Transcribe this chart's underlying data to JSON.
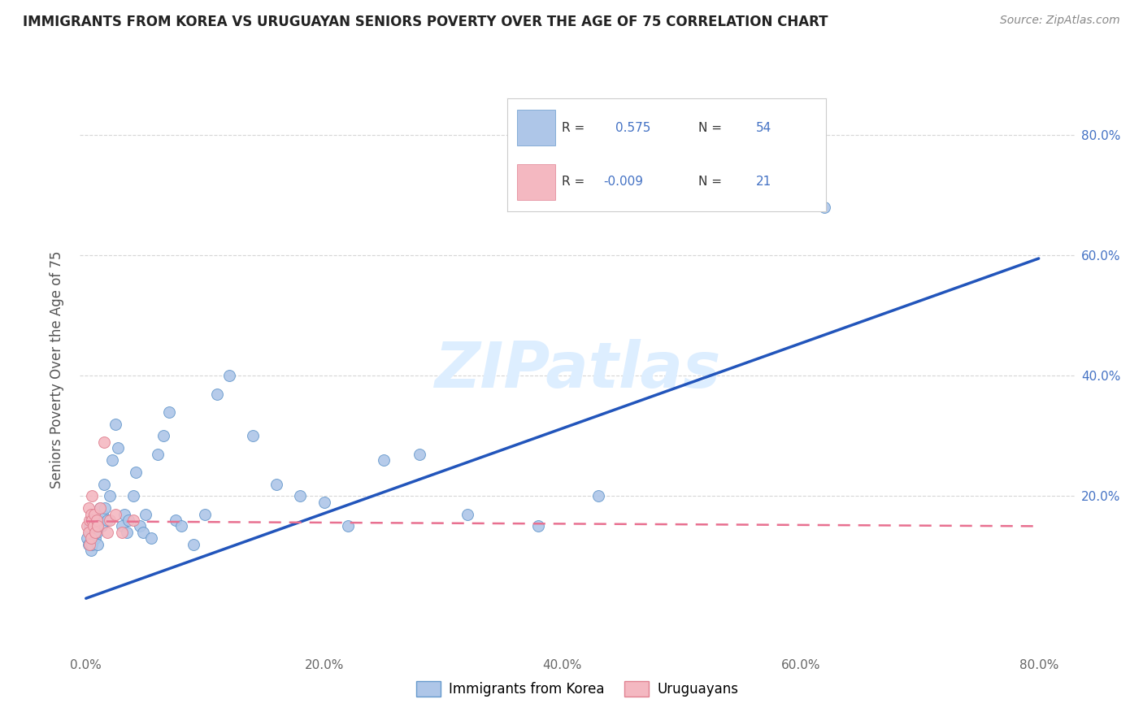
{
  "title": "IMMIGRANTS FROM KOREA VS URUGUAYAN SENIORS POVERTY OVER THE AGE OF 75 CORRELATION CHART",
  "source": "Source: ZipAtlas.com",
  "ylabel": "Seniors Poverty Over the Age of 75",
  "x_tick_labels": [
    "0.0%",
    "20.0%",
    "40.0%",
    "60.0%",
    "80.0%"
  ],
  "x_tick_values": [
    0.0,
    0.2,
    0.4,
    0.6,
    0.8
  ],
  "y_tick_labels": [
    "20.0%",
    "40.0%",
    "60.0%",
    "80.0%"
  ],
  "y_tick_values": [
    0.2,
    0.4,
    0.6,
    0.8
  ],
  "xlim": [
    -0.005,
    0.83
  ],
  "ylim": [
    -0.06,
    0.88
  ],
  "korea_scatter_x": [
    0.001,
    0.002,
    0.003,
    0.003,
    0.004,
    0.004,
    0.005,
    0.005,
    0.006,
    0.007,
    0.008,
    0.009,
    0.01,
    0.011,
    0.012,
    0.013,
    0.014,
    0.015,
    0.016,
    0.018,
    0.02,
    0.022,
    0.025,
    0.027,
    0.03,
    0.032,
    0.034,
    0.036,
    0.04,
    0.042,
    0.045,
    0.048,
    0.05,
    0.055,
    0.06,
    0.065,
    0.07,
    0.075,
    0.08,
    0.09,
    0.1,
    0.11,
    0.12,
    0.14,
    0.16,
    0.18,
    0.2,
    0.22,
    0.25,
    0.28,
    0.32,
    0.38,
    0.43,
    0.62
  ],
  "korea_scatter_y": [
    0.13,
    0.12,
    0.15,
    0.14,
    0.11,
    0.16,
    0.13,
    0.12,
    0.14,
    0.15,
    0.13,
    0.14,
    0.12,
    0.16,
    0.18,
    0.15,
    0.17,
    0.22,
    0.18,
    0.16,
    0.2,
    0.26,
    0.32,
    0.28,
    0.15,
    0.17,
    0.14,
    0.16,
    0.2,
    0.24,
    0.15,
    0.14,
    0.17,
    0.13,
    0.27,
    0.3,
    0.34,
    0.16,
    0.15,
    0.12,
    0.17,
    0.37,
    0.4,
    0.3,
    0.22,
    0.2,
    0.19,
    0.15,
    0.26,
    0.27,
    0.17,
    0.15,
    0.2,
    0.68
  ],
  "uruguay_scatter_x": [
    0.001,
    0.002,
    0.002,
    0.003,
    0.003,
    0.004,
    0.004,
    0.005,
    0.005,
    0.006,
    0.007,
    0.008,
    0.009,
    0.01,
    0.012,
    0.015,
    0.018,
    0.02,
    0.025,
    0.03,
    0.04
  ],
  "uruguay_scatter_y": [
    0.15,
    0.18,
    0.14,
    0.16,
    0.12,
    0.17,
    0.13,
    0.2,
    0.16,
    0.15,
    0.17,
    0.14,
    0.16,
    0.15,
    0.18,
    0.29,
    0.14,
    0.16,
    0.17,
    0.14,
    0.16
  ],
  "korea_line_x": [
    0.0,
    0.8
  ],
  "korea_line_y": [
    0.03,
    0.595
  ],
  "uruguay_line_x": [
    0.0,
    0.8
  ],
  "uruguay_line_y": [
    0.158,
    0.15
  ],
  "scatter_size": 100,
  "korea_color": "#aec6e8",
  "korea_edge_color": "#6699cc",
  "uruguay_color": "#f4b8c1",
  "uruguay_edge_color": "#e08090",
  "korea_line_color": "#2255bb",
  "uruguay_line_color": "#e87090",
  "bg_color": "#ffffff",
  "grid_color": "#cccccc",
  "title_color": "#222222",
  "source_color": "#888888",
  "watermark_text": "ZIPatlas",
  "watermark_color": "#ddeeff"
}
